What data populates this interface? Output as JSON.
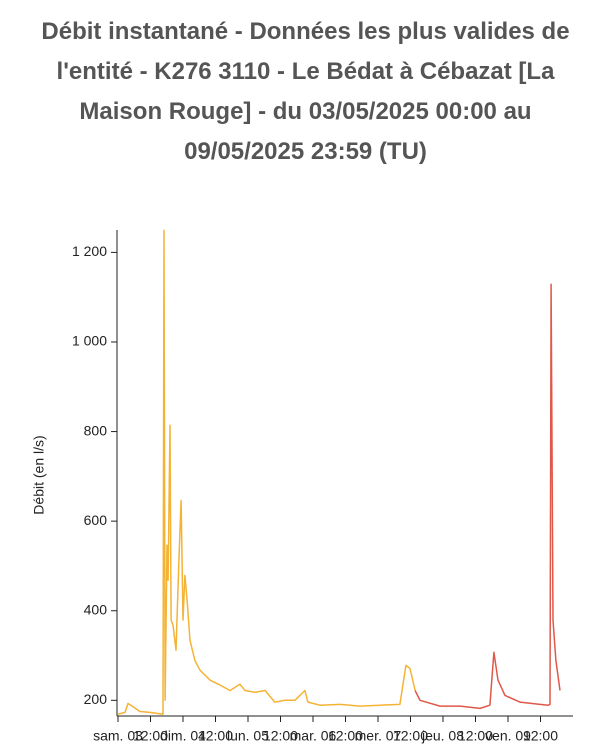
{
  "chart_data": {
    "type": "line",
    "title": "Débit instantané - Données les plus valides de l'entité - K276 3110 - Le Bédat à Cébazat [La Maison Rouge] - du 03/05/2025 00:00 au 09/05/2025 23:59 (TU)",
    "y_label": "Débit (en l/s)",
    "xlim": [
      0,
      168
    ],
    "xticks": [
      {
        "value": 0,
        "label": "sam. 03"
      },
      {
        "value": 12,
        "label": "12:00"
      },
      {
        "value": 24,
        "label": "dim. 04"
      },
      {
        "value": 36,
        "label": "12:00"
      },
      {
        "value": 48,
        "label": "lun. 05"
      },
      {
        "value": 60,
        "label": "12:00"
      },
      {
        "value": 72,
        "label": "mar. 06"
      },
      {
        "value": 84,
        "label": "12:00"
      },
      {
        "value": 96,
        "label": "mer. 07"
      },
      {
        "value": 108,
        "label": "12:00"
      },
      {
        "value": 120,
        "label": "jeu. 08"
      },
      {
        "value": 132,
        "label": "12:00"
      },
      {
        "value": 144,
        "label": "ven. 09"
      },
      {
        "value": 156,
        "label": "12:00"
      }
    ],
    "ylim": [
      165,
      1250
    ],
    "yticks": [
      200,
      400,
      600,
      800,
      {
        "value": 1000,
        "label": "1 000"
      },
      {
        "value": 1200,
        "label": "1 200"
      }
    ],
    "series": [
      {
        "color": "#f5b335",
        "x": [
          0,
          2.6,
          3.7,
          5.2,
          8.1,
          11.8,
          16.6,
          17.0,
          17.4,
          17.7,
          18.1,
          18.5,
          19.2,
          19.6,
          20.3,
          21.4,
          22.5,
          23.3,
          24.0,
          24.7,
          25.5,
          26.6,
          28.4,
          30.3,
          34.0,
          37.7,
          41.4,
          45.0,
          46.9,
          50.6,
          54.3,
          57.9,
          61.7,
          65.3,
          69.0,
          70.1,
          74.6,
          82.0,
          89.4,
          96.8,
          104.1,
          106.3,
          107.8,
          109.7
        ],
        "values": [
          169,
          173,
          193,
          187,
          175,
          173,
          169,
          1249,
          200,
          343,
          546,
          468,
          814,
          379,
          368,
          312,
          512,
          646,
          379,
          479,
          423,
          334,
          289,
          267,
          245,
          234,
          222,
          236,
          222,
          218,
          222,
          196,
          200,
          200,
          222,
          196,
          189,
          191,
          187,
          189,
          191,
          278,
          271,
          222
        ]
      },
      {
        "color": "#e0584a",
        "x": [
          109.7,
          111.5,
          118.9,
          126.3,
          133.7,
          137.3,
          138.8,
          140.3,
          142.9,
          148.4,
          155.8,
          158.8,
          159.5,
          159.9,
          160.6,
          161.7,
          163.2
        ],
        "values": [
          222,
          200,
          187,
          187,
          182,
          189,
          307,
          245,
          211,
          196,
          191,
          189,
          191,
          1129,
          379,
          289,
          222
        ]
      }
    ]
  }
}
